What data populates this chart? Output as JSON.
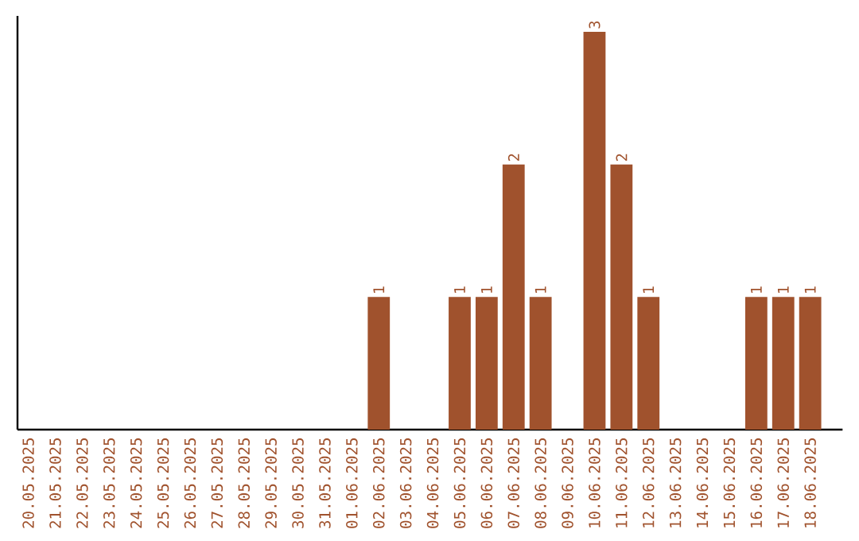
{
  "chart_data": {
    "type": "bar",
    "categories": [
      "20.05.2025",
      "21.05.2025",
      "22.05.2025",
      "23.05.2025",
      "24.05.2025",
      "25.05.2025",
      "26.05.2025",
      "27.05.2025",
      "28.05.2025",
      "29.05.2025",
      "30.05.2025",
      "31.05.2025",
      "01.06.2025",
      "02.06.2025",
      "03.06.2025",
      "04.06.2025",
      "05.06.2025",
      "06.06.2025",
      "07.06.2025",
      "08.06.2025",
      "09.06.2025",
      "10.06.2025",
      "11.06.2025",
      "12.06.2025",
      "13.06.2025",
      "14.06.2025",
      "15.06.2025",
      "16.06.2025",
      "17.06.2025",
      "18.06.2025"
    ],
    "values": [
      null,
      null,
      null,
      null,
      null,
      null,
      null,
      null,
      null,
      null,
      null,
      null,
      null,
      1,
      null,
      null,
      1,
      1,
      2,
      1,
      null,
      3,
      2,
      1,
      null,
      null,
      null,
      1,
      1,
      1
    ],
    "value_labels": [
      null,
      null,
      null,
      null,
      null,
      null,
      null,
      null,
      null,
      null,
      null,
      null,
      null,
      "1",
      null,
      null,
      "1",
      "1",
      "2",
      "1",
      null,
      "3",
      "2",
      "1",
      null,
      null,
      null,
      "1",
      "1",
      "1"
    ],
    "color": "#a0522d"
  }
}
